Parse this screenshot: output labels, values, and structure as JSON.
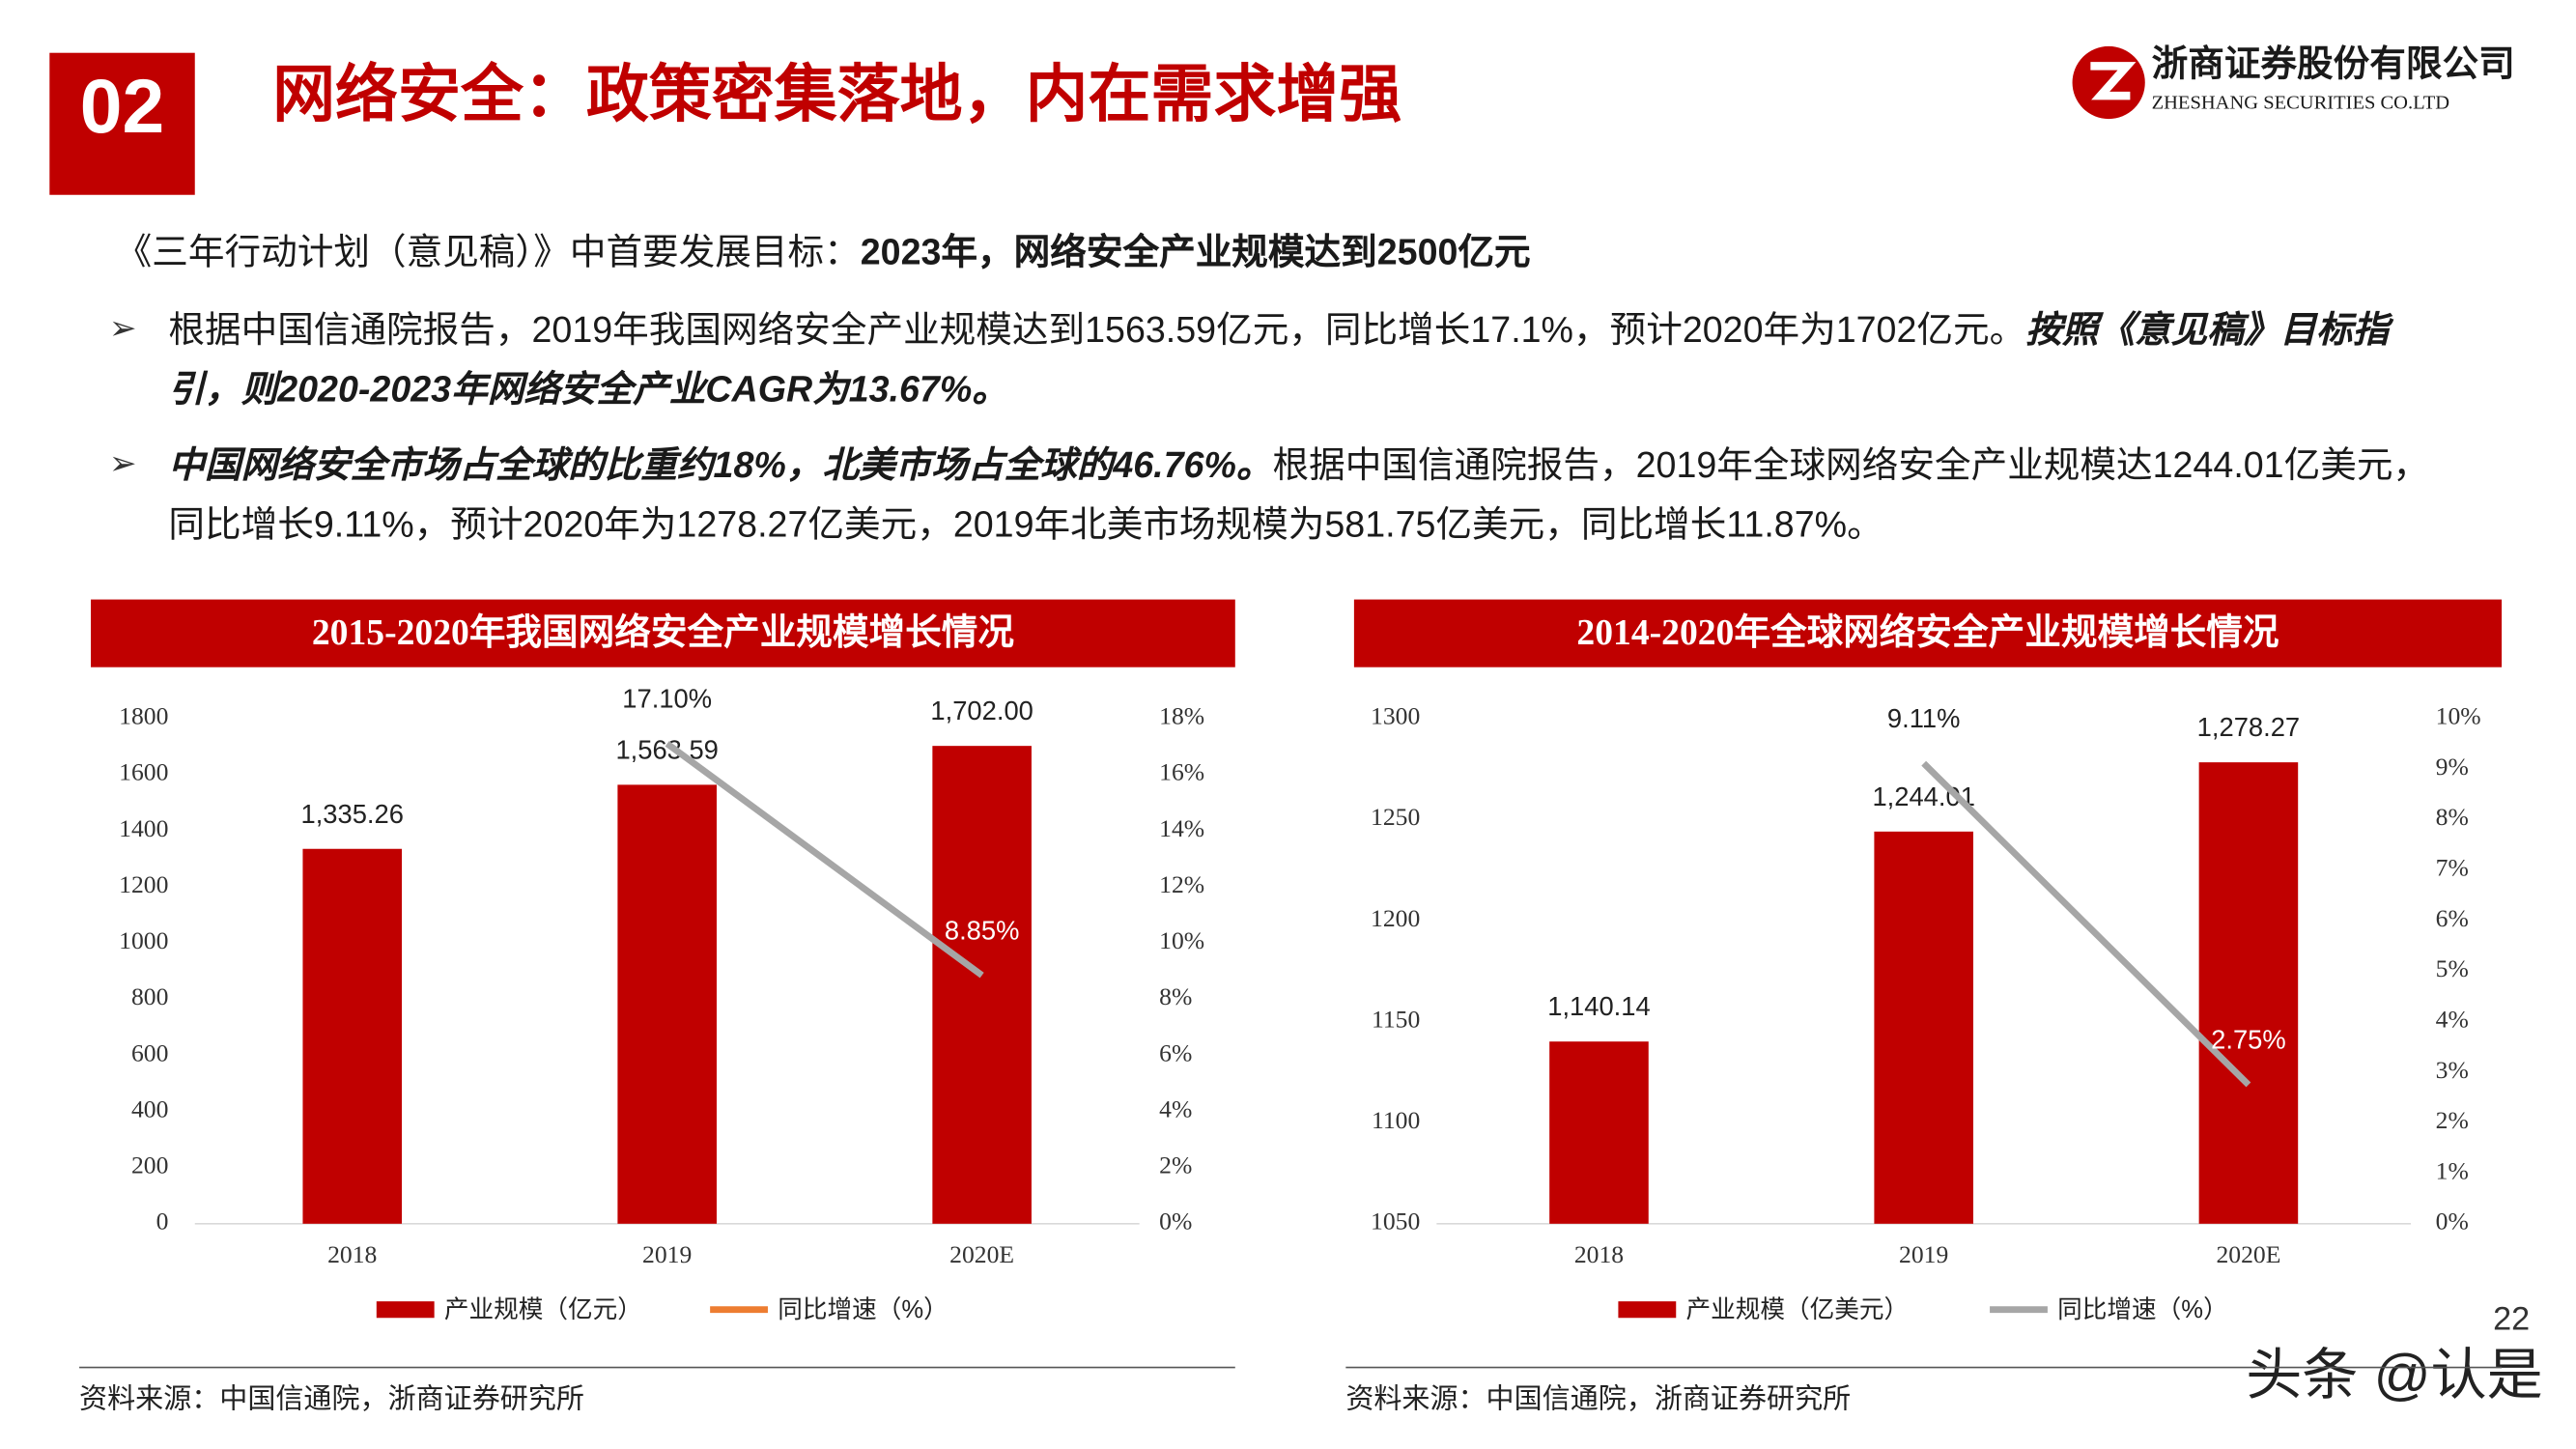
{
  "header": {
    "number": "02",
    "title": "网络安全：政策密集落地，内在需求增强",
    "company": "浙商证券股份有限公司",
    "company_en": "ZHESHANG SECURITIES CO.LTD"
  },
  "intro": {
    "text": "《三年行动计划（意见稿）》中首要发展目标：",
    "emphasis": "2023年，网络安全产业规模达到2500亿元"
  },
  "bullets": [
    {
      "text": "根据中国信通院报告，2019年我国网络安全产业规模达到1563.59亿元，同比增长17.1%，预计2020年为1702亿元。",
      "emphasis": "按照《意见稿》目标指引，则2020-2023年网络安全产业CAGR为13.67%。"
    },
    {
      "emphasis": "中国网络安全市场占全球的比重约18%，北美市场占全球的46.76%。",
      "text": "根据中国信通院报告，2019年全球网络安全产业规模达1244.01亿美元，同比增长9.11%，预计2020年为1278.27亿美元，2019年北美市场规模为581.75亿美元，同比增长11.87%。"
    }
  ],
  "page_number": "22",
  "watermark": "头条 @认是",
  "chart_data": [
    {
      "type": "bar_line",
      "title": "2015-2020年我国网络安全产业规模增长情况",
      "categories": [
        "2018",
        "2019",
        "2020E"
      ],
      "series": [
        {
          "name": "产业规模（亿元）",
          "color": "#c00000",
          "values": [
            1335.26,
            1563.59,
            1702.0
          ],
          "value_labels": [
            "1,335.26",
            "1,563.59",
            "1,702.00"
          ]
        },
        {
          "name": "同比增速（%）",
          "color": "#a6a6a6",
          "legend_color": "#ed7d31",
          "axis": "y2",
          "values": [
            null,
            17.1,
            8.85
          ],
          "value_labels": [
            null,
            "17.10%",
            "8.85%"
          ]
        }
      ],
      "ylim": [
        0,
        1800
      ],
      "yticks": [
        0,
        200,
        400,
        600,
        800,
        1000,
        1200,
        1400,
        1600,
        1800
      ],
      "y2lim": [
        0,
        18
      ],
      "y2ticks": [
        {
          "value": 0,
          "label": "0%"
        },
        {
          "value": 2,
          "label": "2%"
        },
        {
          "value": 4,
          "label": "4%"
        },
        {
          "value": 6,
          "label": "6%"
        },
        {
          "value": 8,
          "label": "8%"
        },
        {
          "value": 10,
          "label": "10%"
        },
        {
          "value": 12,
          "label": "12%"
        },
        {
          "value": 14,
          "label": "14%"
        },
        {
          "value": 16,
          "label": "16%"
        },
        {
          "value": 18,
          "label": "18%"
        }
      ],
      "grid": false,
      "source": "资料来源：中国信通院，浙商证券研究所"
    },
    {
      "type": "bar_line",
      "title": "2014-2020年全球网络安全产业规模增长情况",
      "categories": [
        "2018",
        "2019",
        "2020E"
      ],
      "series": [
        {
          "name": "产业规模（亿美元）",
          "color": "#c00000",
          "values": [
            1140.14,
            1244.01,
            1278.27
          ],
          "value_labels": [
            "1,140.14",
            "1,244.01",
            "1,278.27"
          ]
        },
        {
          "name": "同比增速（%）",
          "color": "#a6a6a6",
          "axis": "y2",
          "values": [
            null,
            9.11,
            2.75
          ],
          "value_labels": [
            null,
            "9.11%",
            "2.75%"
          ]
        }
      ],
      "ylim": [
        1050,
        1300
      ],
      "yticks": [
        1050,
        1100,
        1150,
        1200,
        1250,
        1300
      ],
      "y2lim": [
        0,
        10
      ],
      "y2ticks": [
        {
          "value": 0,
          "label": "0%"
        },
        {
          "value": 1,
          "label": "1%"
        },
        {
          "value": 2,
          "label": "2%"
        },
        {
          "value": 3,
          "label": "3%"
        },
        {
          "value": 4,
          "label": "4%"
        },
        {
          "value": 5,
          "label": "5%"
        },
        {
          "value": 6,
          "label": "6%"
        },
        {
          "value": 7,
          "label": "7%"
        },
        {
          "value": 8,
          "label": "8%"
        },
        {
          "value": 9,
          "label": "9%"
        },
        {
          "value": 10,
          "label": "10%"
        }
      ],
      "grid": false,
      "source": "资料来源：中国信通院，浙商证券研究所"
    }
  ]
}
